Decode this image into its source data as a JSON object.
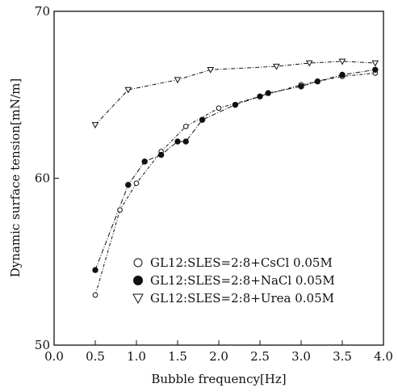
{
  "chart_data": {
    "type": "line",
    "xlabel": "Bubble frequency[Hz]",
    "ylabel": "Dynamic surface tension[mN/m]",
    "xlim": [
      0.0,
      4.0
    ],
    "ylim": [
      50,
      70
    ],
    "x_ticks": [
      "0.0",
      "0.5",
      "1.0",
      "1.5",
      "2.0",
      "2.5",
      "3.0",
      "3.5",
      "4.0"
    ],
    "y_ticks": [
      "50",
      "60",
      "70"
    ],
    "grid": false,
    "legend_position": "lower-right",
    "series": [
      {
        "name": "GL12:SLES=2:8+CsCl 0.05M",
        "marker": "open-circle",
        "points": [
          [
            0.5,
            53.0
          ],
          [
            0.8,
            58.1
          ],
          [
            1.0,
            59.7
          ],
          [
            1.3,
            61.6
          ],
          [
            1.6,
            63.1
          ],
          [
            2.0,
            64.2
          ],
          [
            2.5,
            64.9
          ],
          [
            3.0,
            65.6
          ],
          [
            3.5,
            66.1
          ],
          [
            3.9,
            66.3
          ]
        ]
      },
      {
        "name": "GL12:SLES=2:8+NaCl 0.05M",
        "marker": "filled-circle",
        "points": [
          [
            0.5,
            54.5
          ],
          [
            0.9,
            59.6
          ],
          [
            1.1,
            61.0
          ],
          [
            1.3,
            61.4
          ],
          [
            1.5,
            62.2
          ],
          [
            1.6,
            62.2
          ],
          [
            1.8,
            63.5
          ],
          [
            2.2,
            64.4
          ],
          [
            2.5,
            64.9
          ],
          [
            2.6,
            65.1
          ],
          [
            3.0,
            65.5
          ],
          [
            3.2,
            65.8
          ],
          [
            3.5,
            66.2
          ],
          [
            3.9,
            66.5
          ]
        ]
      },
      {
        "name": "GL12:SLES=2:8+Urea 0.05M",
        "marker": "open-triangle-down",
        "points": [
          [
            0.5,
            63.2
          ],
          [
            0.9,
            65.3
          ],
          [
            1.5,
            65.9
          ],
          [
            1.9,
            66.5
          ],
          [
            2.7,
            66.7
          ],
          [
            3.1,
            66.9
          ],
          [
            3.5,
            67.0
          ],
          [
            3.9,
            66.9
          ]
        ]
      }
    ]
  }
}
